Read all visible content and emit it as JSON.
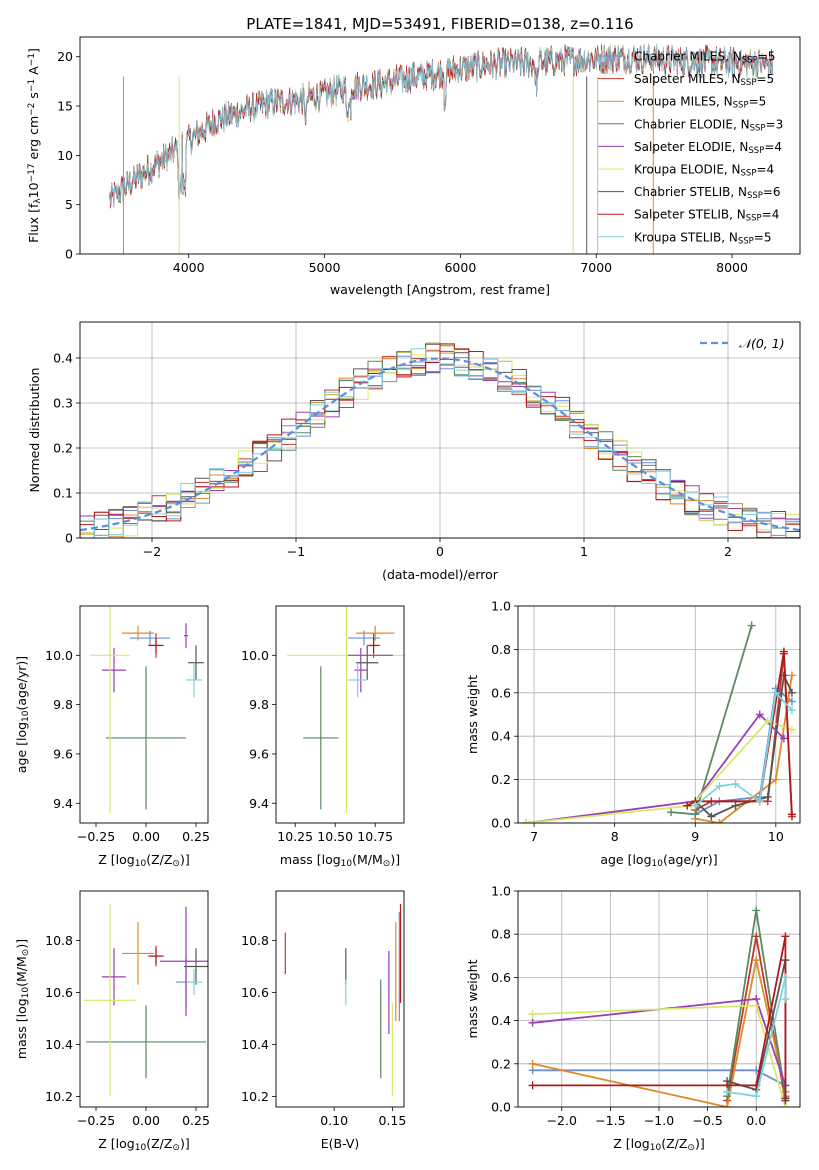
{
  "figure": {
    "title": "PLATE=1841, MJD=53491, FIBERID=0138, z=0.116"
  },
  "series": [
    {
      "name": "Chabrier MILES, N_SSP=5",
      "label_main": "Chabrier MILES, N",
      "label_sub": "SSP",
      "label_tail": "=5",
      "color": "#6b8fd6"
    },
    {
      "name": "Salpeter MILES, N_SSP=5",
      "label_main": "Salpeter MILES, N",
      "label_sub": "SSP",
      "label_tail": "=5",
      "color": "#c0392b"
    },
    {
      "name": "Kroupa MILES, N_SSP=5",
      "label_main": "Kroupa MILES, N",
      "label_sub": "SSP",
      "label_tail": "=5",
      "color": "#e08a2a"
    },
    {
      "name": "Chabrier ELODIE, N_SSP=3",
      "label_main": "Chabrier ELODIE, N",
      "label_sub": "SSP",
      "label_tail": "=3",
      "color": "#5b8a62"
    },
    {
      "name": "Salpeter ELODIE, N_SSP=4",
      "label_main": "Salpeter ELODIE, N",
      "label_sub": "SSP",
      "label_tail": "=4",
      "color": "#9a3fb5"
    },
    {
      "name": "Kroupa ELODIE, N_SSP=4",
      "label_main": "Kroupa ELODIE, N",
      "label_sub": "SSP",
      "label_tail": "=4",
      "color": "#d8e86a"
    },
    {
      "name": "Chabrier STELIB, N_SSP=6",
      "label_main": "Chabrier STELIB, N",
      "label_sub": "SSP",
      "label_tail": "=6",
      "color": "#555555"
    },
    {
      "name": "Salpeter STELIB, N_SSP=4",
      "label_main": "Salpeter STELIB, N",
      "label_sub": "SSP",
      "label_tail": "=4",
      "color": "#b01a1a"
    },
    {
      "name": "Kroupa STELIB, N_SSP=5",
      "label_main": "Kroupa STELIB, N",
      "label_sub": "SSP",
      "label_tail": "=5",
      "color": "#7fd3e0"
    }
  ],
  "chart_data": [
    {
      "type": "line",
      "id": "spectrum",
      "xlabel": "wavelength [Angstrom, rest frame]",
      "ylabel_parts": [
        "Flux [f",
        "λ",
        "10",
        "−17",
        " erg cm",
        "−2",
        " s",
        "−1",
        " A",
        "−1",
        "]"
      ],
      "xlim": [
        3200,
        8500
      ],
      "ylim": [
        0,
        22
      ],
      "xticks": [
        4000,
        5000,
        6000,
        7000,
        8000
      ],
      "yticks": [
        0,
        5,
        10,
        15,
        20
      ],
      "grid": false,
      "legend": "top-right",
      "continuum_x": [
        3420,
        3600,
        3800,
        4000,
        4200,
        4400,
        4600,
        4800,
        5000,
        5200,
        5400,
        5600,
        5800,
        6000,
        6200,
        6400,
        6600,
        6800,
        7000,
        7200,
        7400,
        7600,
        7800,
        8000,
        8200,
        8300
      ],
      "continuum_y": [
        5.5,
        7.5,
        9.5,
        11.5,
        13.5,
        14.5,
        15.3,
        15.6,
        16.2,
        17.0,
        17.2,
        17.8,
        18.2,
        18.8,
        19.2,
        19.3,
        19.5,
        19.6,
        19.8,
        19.9,
        19.8,
        19.6,
        19.5,
        19.4,
        19.3,
        19.2
      ]
    },
    {
      "type": "bar",
      "id": "residual-histogram",
      "xlabel": "(data-model)/error",
      "ylabel": "Normed distribution",
      "xlim": [
        -2.5,
        2.5
      ],
      "ylim": [
        0,
        0.48
      ],
      "xticks": [
        -2,
        -1,
        0,
        1,
        2
      ],
      "yticks": [
        0.0,
        0.1,
        0.2,
        0.3,
        0.4
      ],
      "grid": true,
      "legend": "top-right",
      "reference_label": "𝒩(0, 1)",
      "reference_color": "#5b8fdd"
    },
    {
      "type": "scatter",
      "id": "age-vs-Z",
      "xlabel_parts": [
        "Z [log",
        "10",
        "(Z/Z",
        "⊙",
        ")]"
      ],
      "ylabel_parts": [
        "age  [log",
        "10",
        "(age/yr)]"
      ],
      "xlim": [
        -0.33,
        0.31
      ],
      "ylim": [
        9.32,
        10.2
      ],
      "xticks": [
        -0.25,
        0.0,
        0.25
      ],
      "xtick_labels": [
        "−0.25",
        "0.00",
        "0.25"
      ],
      "yticks": [
        9.4,
        9.6,
        9.8,
        10.0
      ],
      "ytick_labels": [
        "9.4",
        "9.6",
        "9.8",
        "10.0"
      ],
      "points": [
        {
          "series": 0,
          "x": 0.02,
          "y": 10.07,
          "xe": 0.1,
          "ye": 0.03
        },
        {
          "series": 1,
          "x": 0.05,
          "y": 10.04,
          "xe": 0.04,
          "ye": 0.05
        },
        {
          "series": 2,
          "x": -0.04,
          "y": 10.09,
          "xe": 0.08,
          "ye": 0.03
        },
        {
          "series": 3,
          "x": 0.0,
          "y": 9.665,
          "xe": 0.2,
          "ye": 0.29
        },
        {
          "series": 4,
          "x": -0.16,
          "y": 9.94,
          "xe": 0.06,
          "ye": 0.09
        },
        {
          "series": 5,
          "x": -0.18,
          "y": 10.0,
          "xe": 0.1,
          "ye": 0.64
        },
        {
          "series": 6,
          "x": 0.25,
          "y": 9.97,
          "xe": 0.04,
          "ye": 0.07
        },
        {
          "series": 7,
          "x": 0.05,
          "y": 10.04,
          "xe": 0.03,
          "ye": 0.03
        },
        {
          "series": 8,
          "x": 0.24,
          "y": 9.9,
          "xe": 0.04,
          "ye": 0.07
        },
        {
          "series": 4,
          "x": 0.2,
          "y": 10.08,
          "xe": 0.01,
          "ye": 0.05
        }
      ]
    },
    {
      "type": "scatter",
      "id": "age-vs-mass",
      "xlabel_parts": [
        "mass [log",
        "10",
        "(M/M",
        "⊙",
        ")]"
      ],
      "xlim": [
        10.13,
        10.93
      ],
      "ylim": [
        9.32,
        10.2
      ],
      "xticks": [
        10.25,
        10.5,
        10.75
      ],
      "xtick_labels": [
        "10.25",
        "10.50",
        "10.75"
      ],
      "yticks": [
        9.4,
        9.6,
        9.8,
        10.0
      ],
      "ytick_labels": [
        "9.4",
        "9.6",
        "9.8",
        "10.0"
      ],
      "points": [
        {
          "series": 0,
          "x": 10.68,
          "y": 10.07,
          "xe": 0.1,
          "ye": 0.03
        },
        {
          "series": 1,
          "x": 10.74,
          "y": 10.04,
          "xe": 0.04,
          "ye": 0.05
        },
        {
          "series": 2,
          "x": 10.75,
          "y": 10.09,
          "xe": 0.12,
          "ye": 0.03
        },
        {
          "series": 3,
          "x": 10.41,
          "y": 9.665,
          "xe": 0.11,
          "ye": 0.29
        },
        {
          "series": 4,
          "x": 10.66,
          "y": 9.94,
          "xe": 0.04,
          "ye": 0.09
        },
        {
          "series": 5,
          "x": 10.57,
          "y": 10.0,
          "xe": 0.37,
          "ye": 0.64
        },
        {
          "series": 6,
          "x": 10.7,
          "y": 9.97,
          "xe": 0.07,
          "ye": 0.07
        },
        {
          "series": 7,
          "x": 10.74,
          "y": 10.04,
          "xe": 0.03,
          "ye": 0.03
        },
        {
          "series": 8,
          "x": 10.64,
          "y": 9.9,
          "xe": 0.06,
          "ye": 0.07
        },
        {
          "series": 4,
          "x": 10.72,
          "y": 10.0,
          "xe": 0.14,
          "ye": 0.0
        }
      ]
    },
    {
      "type": "line",
      "id": "mass-weight-vs-age",
      "xlabel_parts": [
        "age  [log",
        "10",
        "(age/yr)]"
      ],
      "ylabel": "mass weight",
      "xlim": [
        6.8,
        10.3
      ],
      "ylim": [
        0,
        1
      ],
      "xticks": [
        7,
        8,
        9,
        10
      ],
      "yticks": [
        0.0,
        0.2,
        0.4,
        0.6,
        0.8,
        1.0
      ],
      "ytick_labels": [
        "0.0",
        "0.2",
        "0.4",
        "0.6",
        "0.8",
        "1.0"
      ],
      "grid": true,
      "lines": [
        {
          "series": 0,
          "x": [
            9.0,
            9.3,
            9.8,
            10.0,
            10.2
          ],
          "y": [
            0.04,
            0.1,
            0.12,
            0.62,
            0.56
          ]
        },
        {
          "series": 1,
          "x": [
            9.0,
            9.2,
            9.9,
            10.1,
            10.2
          ],
          "y": [
            0.06,
            0.1,
            0.1,
            0.78,
            0.03
          ]
        },
        {
          "series": 2,
          "x": [
            9.0,
            9.3,
            10.0,
            10.2
          ],
          "y": [
            0.02,
            0.0,
            0.2,
            0.68
          ]
        },
        {
          "series": 3,
          "x": [
            8.7,
            9.0,
            9.7
          ],
          "y": [
            0.05,
            0.04,
            0.91
          ]
        },
        {
          "series": 4,
          "x": [
            6.9,
            9.0,
            9.8,
            10.1
          ],
          "y": [
            0.0,
            0.1,
            0.5,
            0.39
          ]
        },
        {
          "series": 5,
          "x": [
            6.9,
            8.95,
            9.9,
            10.2
          ],
          "y": [
            0.0,
            0.08,
            0.47,
            0.43
          ]
        },
        {
          "series": 6,
          "x": [
            9.0,
            9.2,
            9.5,
            9.9,
            10.1,
            10.2
          ],
          "y": [
            0.1,
            0.03,
            0.08,
            0.12,
            0.68,
            0.6
          ]
        },
        {
          "series": 7,
          "x": [
            8.9,
            9.0,
            9.8,
            10.1,
            10.2
          ],
          "y": [
            0.08,
            0.1,
            0.1,
            0.79,
            0.04
          ]
        },
        {
          "series": 8,
          "x": [
            9.0,
            9.3,
            9.5,
            9.8,
            10.0,
            10.2
          ],
          "y": [
            0.08,
            0.17,
            0.18,
            0.1,
            0.6,
            0.52
          ]
        }
      ]
    },
    {
      "type": "scatter",
      "id": "mass-vs-Z",
      "xlabel_parts": [
        "Z [log",
        "10",
        "(Z/Z",
        "⊙",
        ")]"
      ],
      "ylabel_parts": [
        "mass [log",
        "10",
        "(M/M",
        "⊙",
        ")]"
      ],
      "xlim": [
        -0.33,
        0.31
      ],
      "ylim": [
        10.16,
        10.99
      ],
      "xticks": [
        -0.25,
        0.0,
        0.25
      ],
      "xtick_labels": [
        "−0.25",
        "0.00",
        "0.25"
      ],
      "yticks": [
        10.2,
        10.4,
        10.6,
        10.8
      ],
      "ytick_labels": [
        "10.2",
        "10.4",
        "10.6",
        "10.8"
      ],
      "points": [
        {
          "series": 0,
          "x": 0.2,
          "y": 10.64,
          "xe": 0.05,
          "ye": 0.1
        },
        {
          "series": 1,
          "x": 0.05,
          "y": 10.74,
          "xe": 0.04,
          "ye": 0.04
        },
        {
          "series": 2,
          "x": -0.04,
          "y": 10.75,
          "xe": 0.08,
          "ye": 0.12
        },
        {
          "series": 3,
          "x": 0.0,
          "y": 10.41,
          "xe": 0.3,
          "ye": 0.14
        },
        {
          "series": 4,
          "x": -0.16,
          "y": 10.66,
          "xe": 0.06,
          "ye": 0.11
        },
        {
          "series": 5,
          "x": -0.18,
          "y": 10.57,
          "xe": 0.13,
          "ye": 0.37
        },
        {
          "series": 6,
          "x": 0.25,
          "y": 10.7,
          "xe": 0.06,
          "ye": 0.07
        },
        {
          "series": 7,
          "x": 0.05,
          "y": 10.74,
          "xe": 0.03,
          "ye": 0.03
        },
        {
          "series": 8,
          "x": 0.24,
          "y": 10.64,
          "xe": 0.04,
          "ye": 0.05
        },
        {
          "series": 4,
          "x": 0.2,
          "y": 10.72,
          "xe": 0.13,
          "ye": 0.21
        }
      ]
    },
    {
      "type": "scatter",
      "id": "mass-vs-EBV",
      "xlabel": "E(B-V)",
      "xlim": [
        0.05,
        0.16
      ],
      "ylim": [
        10.16,
        10.99
      ],
      "xticks": [
        0.1,
        0.15
      ],
      "xtick_labels": [
        "0.10",
        "0.15"
      ],
      "yticks": [
        10.2,
        10.4,
        10.6,
        10.8
      ],
      "ytick_labels": [
        "10.2",
        "10.4",
        "10.6",
        "10.8"
      ],
      "points": [
        {
          "series": 1,
          "x": 0.058,
          "y": 10.75,
          "ye": 0.08
        },
        {
          "series": 6,
          "x": 0.11,
          "y": 10.7,
          "ye": 0.07
        },
        {
          "series": 8,
          "x": 0.11,
          "y": 10.6,
          "ye": 0.05
        },
        {
          "series": 3,
          "x": 0.14,
          "y": 10.46,
          "ye": 0.19
        },
        {
          "series": 4,
          "x": 0.147,
          "y": 10.6,
          "ye": 0.16
        },
        {
          "series": 5,
          "x": 0.15,
          "y": 10.38,
          "ye": 0.18
        },
        {
          "series": 2,
          "x": 0.153,
          "y": 10.68,
          "ye": 0.19
        },
        {
          "series": 0,
          "x": 0.156,
          "y": 10.7,
          "ye": 0.21
        },
        {
          "series": 7,
          "x": 0.157,
          "y": 10.75,
          "ye": 0.19
        }
      ]
    },
    {
      "type": "line",
      "id": "mass-weight-vs-Z",
      "xlabel_parts": [
        "Z [log",
        "10",
        "(Z/Z",
        "⊙",
        ")]"
      ],
      "ylabel": "mass weight",
      "xlim": [
        -2.45,
        0.45
      ],
      "ylim": [
        0,
        1
      ],
      "xticks": [
        -2.0,
        -1.5,
        -1.0,
        -0.5,
        0.0
      ],
      "xtick_labels": [
        "−2.0",
        "−1.5",
        "−1.0",
        "−0.5",
        "0.0"
      ],
      "yticks": [
        0.0,
        0.2,
        0.4,
        0.6,
        0.8,
        1.0
      ],
      "ytick_labels": [
        "0.0",
        "0.2",
        "0.4",
        "0.6",
        "0.8",
        "1.0"
      ],
      "grid": true,
      "lines": [
        {
          "series": 0,
          "x": [
            -2.3,
            0.0,
            0.3,
            0.3
          ],
          "y": [
            0.17,
            0.17,
            0.1,
            0.05
          ]
        },
        {
          "series": 1,
          "x": [
            -0.3,
            0.0,
            0.3
          ],
          "y": [
            0.03,
            0.79,
            0.03
          ]
        },
        {
          "series": 2,
          "x": [
            -2.3,
            -0.3,
            0.0,
            0.3
          ],
          "y": [
            0.2,
            0.0,
            0.68,
            0.07
          ]
        },
        {
          "series": 3,
          "x": [
            -0.3,
            0.0,
            0.3
          ],
          "y": [
            0.05,
            0.91,
            0.05
          ]
        },
        {
          "series": 4,
          "x": [
            -2.3,
            0.0,
            0.3,
            0.3
          ],
          "y": [
            0.39,
            0.5,
            0.1,
            0.04
          ]
        },
        {
          "series": 5,
          "x": [
            -2.3,
            0.0,
            0.3
          ],
          "y": [
            0.43,
            0.47,
            0.0
          ]
        },
        {
          "series": 6,
          "x": [
            -0.3,
            0.0,
            0.3,
            0.3
          ],
          "y": [
            0.12,
            0.08,
            0.68,
            0.03
          ]
        },
        {
          "series": 7,
          "x": [
            -2.3,
            -0.3,
            0.0,
            0.3,
            0.3
          ],
          "y": [
            0.1,
            0.1,
            0.1,
            0.79,
            0.04
          ]
        },
        {
          "series": 8,
          "x": [
            -0.3,
            0.0,
            0.3,
            0.3
          ],
          "y": [
            0.07,
            0.05,
            0.6,
            0.5
          ]
        }
      ]
    }
  ]
}
